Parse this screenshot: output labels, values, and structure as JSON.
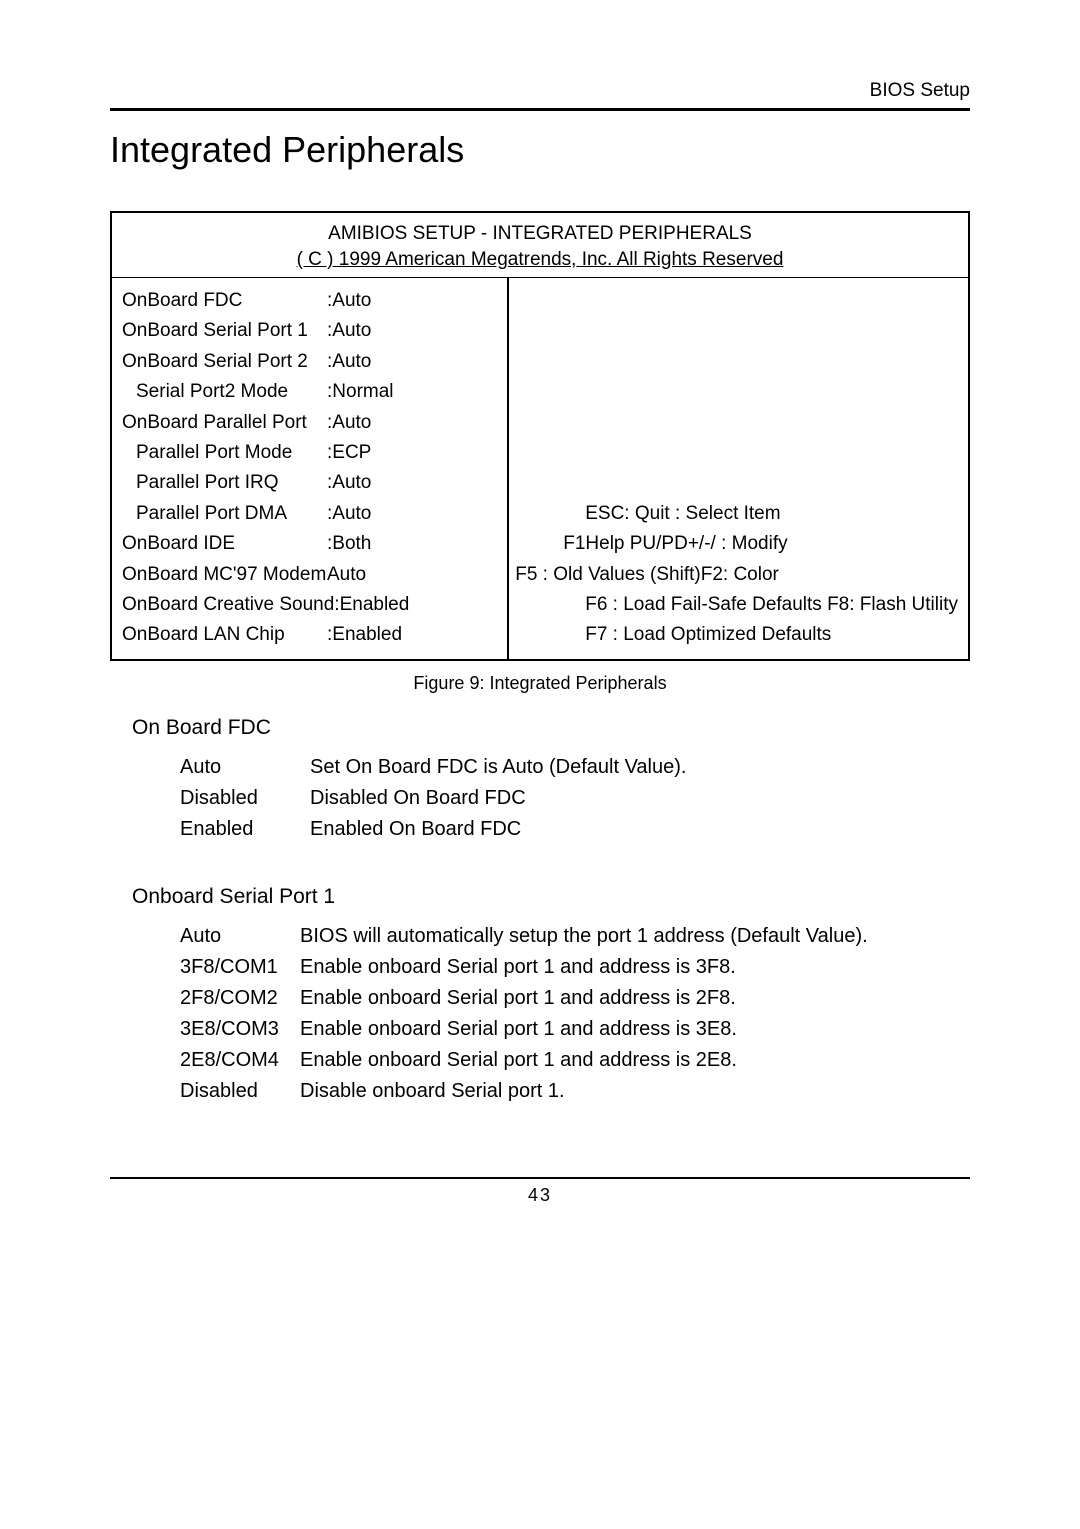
{
  "header": {
    "right_text": "BIOS Setup"
  },
  "page_title": "Integrated Peripherals",
  "bios_box": {
    "title": "AMIBIOS SETUP - INTEGRATED PERIPHERALS",
    "subtitle": "( C ) 1999 American Megatrends, Inc. All Rights Reserved",
    "rows": [
      {
        "label": "OnBoard FDC",
        "value": ":Auto",
        "indent": false
      },
      {
        "label": "OnBoard Serial Port 1",
        "value": ":Auto",
        "indent": false
      },
      {
        "label": "OnBoard Serial Port 2",
        "value": ":Auto",
        "indent": false
      },
      {
        "label": "Serial Port2 Mode",
        "value": ":Normal",
        "indent": true
      },
      {
        "label": "OnBoard Parallel Port",
        "value": ":Auto",
        "indent": false
      },
      {
        "label": "Parallel Port Mode",
        "value": ":ECP",
        "indent": true
      },
      {
        "label": "Parallel Port IRQ",
        "value": ":Auto",
        "indent": true
      },
      {
        "label": "Parallel Port DMA",
        "value": ":Auto",
        "indent": true
      },
      {
        "label": "OnBoard IDE",
        "value": ":Both",
        "indent": false
      },
      {
        "label": "OnBoard MC'97 Modem",
        "value": "Auto",
        "indent": false
      },
      {
        "label": "OnBoard Creative Sound",
        "value": ":Enabled",
        "indent": false
      },
      {
        "label": "OnBoard LAN Chip",
        "value": ":Enabled",
        "indent": false
      }
    ],
    "help": {
      "r1": "ESC: Quit   : Select Item",
      "r2": "F1Help      PU/PD+/-/ : Modify",
      "r3": "F5   : Old  Values               (Shift)F2: Color",
      "r4": "F6   : Load Fail-Safe Defaults  F8: Flash Utility",
      "r5": "F7   : Load Optimized Defaults"
    }
  },
  "figure_caption": "Figure 9: Integrated Peripherals",
  "sections": [
    {
      "title": "On Board FDC",
      "options": [
        {
          "key": "Auto",
          "desc": "Set On Board FDC is Auto (Default Value)."
        },
        {
          "key": "Disabled",
          "desc": "Disabled On Board FDC"
        },
        {
          "key": "Enabled",
          "desc": "Enabled On Board FDC"
        }
      ]
    },
    {
      "title": "Onboard Serial Port 1",
      "options": [
        {
          "key": "Auto",
          "desc": "BIOS will automatically setup the port 1 address (Default Value)."
        },
        {
          "key": "3F8/COM1",
          "desc": "Enable onboard Serial port 1 and address is 3F8."
        },
        {
          "key": "2F8/COM2",
          "desc": "Enable onboard Serial port 1 and address is 2F8."
        },
        {
          "key": "3E8/COM3",
          "desc": "Enable onboard Serial port 1 and address is 3E8."
        },
        {
          "key": "2E8/COM4",
          "desc": "Enable onboard Serial port 1 and address is 2E8."
        },
        {
          "key": "Disabled",
          "desc": "Disable onboard Serial port 1."
        }
      ]
    }
  ],
  "page_number": "43"
}
